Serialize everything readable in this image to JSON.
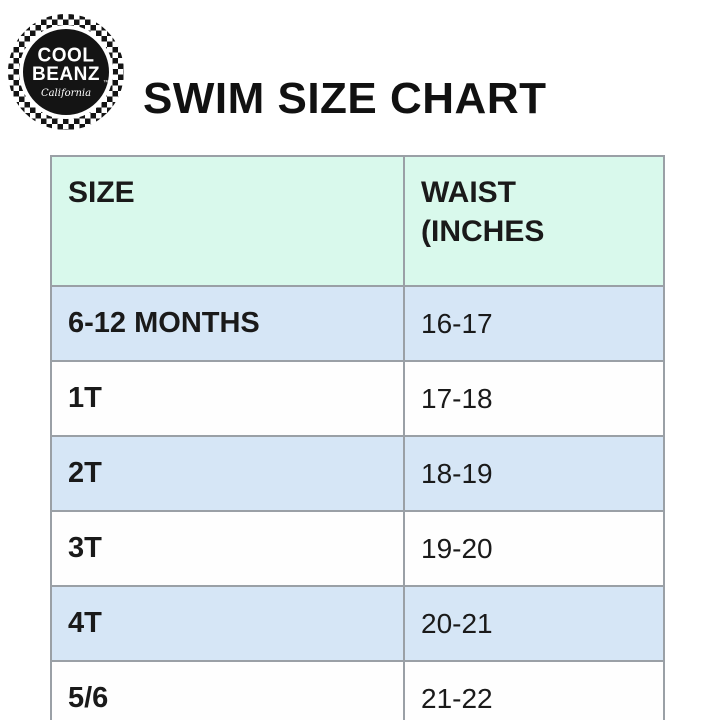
{
  "logo": {
    "name_line1": "COOL",
    "name_line2": "BEANZ",
    "trademark": "™",
    "region": "California"
  },
  "title": "SWIM SIZE CHART",
  "chart_data": {
    "type": "table",
    "title": "SWIM SIZE CHART",
    "columns": [
      "SIZE",
      "WAIST (INCHES"
    ],
    "rows": [
      [
        "6-12 MONTHS",
        "16-17"
      ],
      [
        "1T",
        "17-18"
      ],
      [
        "2T",
        "18-19"
      ],
      [
        "3T",
        "19-20"
      ],
      [
        "4T",
        "20-21"
      ],
      [
        "5/6",
        "21-22"
      ]
    ],
    "layout_hints": {
      "header_position": "top",
      "row_striping": "header mint, then alternating light-blue / white starting with light-blue"
    }
  },
  "colors": {
    "header_bg": "#d9f9ec",
    "alt_row_bg": "#d6e6f6",
    "row_bg": "#fefefe",
    "grid_border": "#9aa0a6",
    "column_divider": "#555a5e",
    "text": "#1a1a1a",
    "logo_bg": "#141414",
    "logo_text": "#ffffff"
  }
}
